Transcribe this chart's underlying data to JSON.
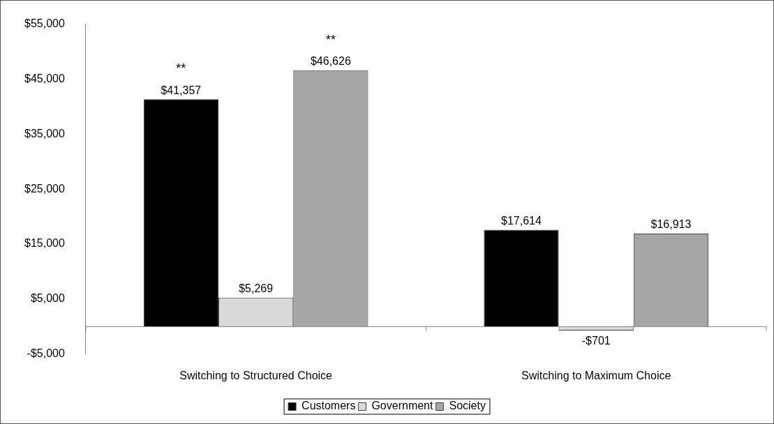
{
  "chart_data": {
    "type": "bar",
    "categories": [
      "Switching to Structured Choice",
      "Switching to Maximum Choice"
    ],
    "series": [
      {
        "name": "Customers",
        "color": "#000000",
        "values": [
          41357,
          17614
        ],
        "value_labels": [
          "$41,357",
          "$17,614"
        ]
      },
      {
        "name": "Government",
        "color": "#d9d9d9",
        "values": [
          5269,
          -701
        ],
        "value_labels": [
          "$5,269",
          "-$701"
        ]
      },
      {
        "name": "Society",
        "color": "#a6a6a6",
        "values": [
          46626,
          16913
        ],
        "value_labels": [
          "$46,626",
          "$16,913"
        ]
      }
    ],
    "ylim": [
      -5000,
      55000
    ],
    "yticks": [
      {
        "value": -5000,
        "label": "-$5,000"
      },
      {
        "value": 5000,
        "label": "$5,000"
      },
      {
        "value": 15000,
        "label": "$15,000"
      },
      {
        "value": 25000,
        "label": "$25,000"
      },
      {
        "value": 35000,
        "label": "$35,000"
      },
      {
        "value": 45000,
        "label": "$45,000"
      },
      {
        "value": 55000,
        "label": "$55,000"
      }
    ],
    "annotations": [
      "**",
      "**"
    ],
    "grid": false,
    "legend": "bottom"
  }
}
